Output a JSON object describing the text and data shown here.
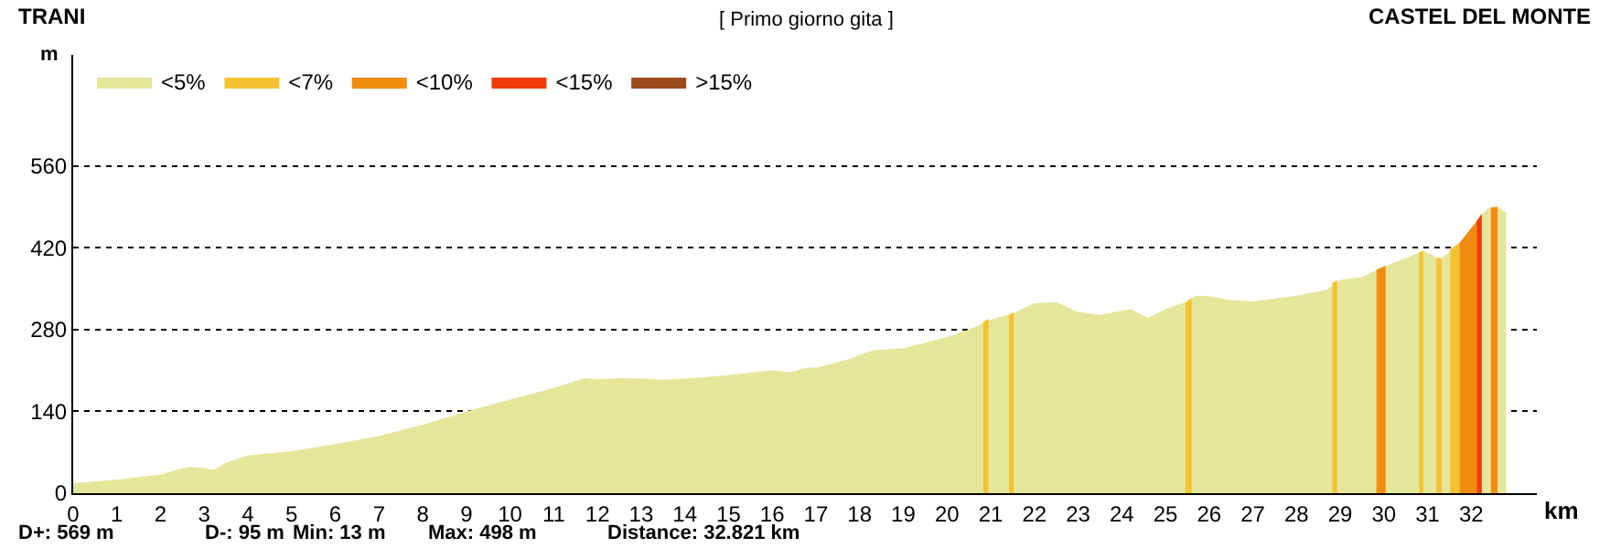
{
  "chart_data": {
    "type": "area",
    "title": "[ Primo giorno gita ]",
    "xlabel": "km",
    "ylabel": "m",
    "xlim": [
      0,
      33.5
    ],
    "xticks": [
      0,
      1,
      2,
      3,
      4,
      5,
      6,
      7,
      8,
      9,
      10,
      11,
      12,
      13,
      14,
      15,
      16,
      17,
      18,
      19,
      20,
      21,
      22,
      23,
      24,
      25,
      26,
      27,
      28,
      29,
      30,
      31,
      32
    ],
    "ylim": [
      0,
      750
    ],
    "yticks": [
      0,
      140,
      280,
      420,
      560
    ],
    "grid": "y",
    "legend": "top left",
    "marker": "none",
    "annotations": [
      "TRANI",
      "CASTEL DEL MONTE",
      "D+: 569 m",
      "D-: 95 m",
      "Min: 13 m",
      "Max: 498 m",
      "Distance: 32.821 km"
    ],
    "series": [
      {
        "name": "<5%",
        "color": "#e6e69b",
        "x": [
          0,
          1,
          2,
          2.5,
          2.7,
          3,
          3.2,
          3.5,
          4,
          5,
          6,
          7,
          8,
          9,
          10,
          11,
          11.7,
          12,
          12.5,
          13,
          13.5,
          14,
          15,
          16,
          16.4,
          16.8,
          17,
          17.8,
          18.05,
          18.3,
          19,
          20,
          20.5,
          21,
          21.5,
          22,
          22.5,
          23,
          23.5,
          24,
          24.2,
          24.6,
          25,
          25.5,
          25.7,
          26,
          26.5,
          27,
          28,
          28.7,
          29,
          29.5,
          30,
          30.5,
          30.9,
          31.3,
          31.6,
          32,
          32.2,
          32.4,
          32.6,
          32.8
        ],
        "values": [
          17,
          23,
          32,
          43,
          45,
          43,
          40,
          52,
          65,
          72,
          84,
          98,
          117,
          140,
          160,
          180,
          197,
          195,
          197,
          196,
          194,
          196,
          202,
          210,
          207,
          215,
          215,
          230,
          238,
          244,
          248,
          267,
          280,
          297,
          308,
          325,
          327,
          310,
          305,
          312,
          315,
          300,
          315,
          328,
          338,
          337,
          330,
          328,
          338,
          348,
          365,
          370,
          388,
          402,
          415,
          400,
          420,
          450,
          475,
          488,
          490,
          480
        ]
      },
      {
        "name": "<7%",
        "color": "#f5c232",
        "x": [
          20.83,
          20.95,
          null,
          21.42,
          21.53,
          null,
          25.46,
          25.6,
          null,
          28.82,
          28.93,
          null,
          30.81,
          30.9,
          null,
          31.2,
          31.32,
          null,
          31.52,
          31.73
        ],
        "values": [
          293,
          298,
          null,
          305,
          309,
          null,
          326,
          334,
          null,
          360,
          364,
          null,
          413,
          414,
          null,
          403,
          401,
          null,
          417,
          428
        ]
      },
      {
        "name": "<10%",
        "color": "#f28c0f",
        "x": [
          29.83,
          30.04,
          null,
          31.73,
          32.15,
          null,
          32.45,
          32.6
        ],
        "values": [
          382,
          389,
          null,
          428,
          468,
          null,
          489,
          490
        ]
      },
      {
        "name": "<15%",
        "color": "#ee3c0a",
        "x": [
          32.13,
          32.24
        ],
        "values": [
          466,
          478
        ]
      },
      {
        "name": ">15%",
        "color": "#9c4a1e"
      }
    ]
  }
}
